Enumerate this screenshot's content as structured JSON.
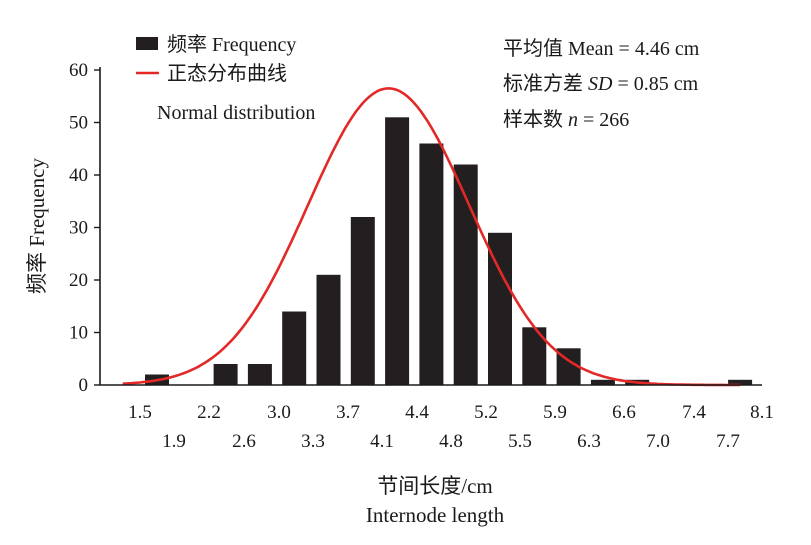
{
  "chart_data": {
    "type": "bar",
    "legend": {
      "placement": "top-left",
      "bar_label": "频率 Frequency",
      "curve_label": "正态分布曲线",
      "curve_label_en": "Normal distribution"
    },
    "stats": [
      {
        "prefix": "平均值 Mean = ",
        "italic": "",
        "suffix": "4.46 cm"
      },
      {
        "prefix": "标准方差 ",
        "italic": "SD",
        "suffix": " = 0.85 cm"
      },
      {
        "prefix": "样本数 ",
        "italic": "n",
        "suffix": " = 266"
      }
    ],
    "ylabel": "频率 Frequency",
    "xlabel_cn": "节间长度/cm",
    "xlabel_en": "Internode length",
    "ylim": [
      0,
      60
    ],
    "yticks": [
      0,
      10,
      20,
      30,
      40,
      50,
      60
    ],
    "x_tick_labels_row1": [
      "1.5",
      "2.2",
      "3.0",
      "3.7",
      "4.4",
      "5.2",
      "5.9",
      "6.6",
      "7.4",
      "8.1"
    ],
    "x_tick_labels_row2": [
      "1.9",
      "2.6",
      "3.3",
      "4.1",
      "4.8",
      "5.5",
      "6.3",
      "7.0",
      "7.7"
    ],
    "values": [
      2,
      0,
      4,
      4,
      14,
      21,
      32,
      51,
      46,
      42,
      29,
      11,
      7,
      1,
      1,
      0,
      0,
      1
    ],
    "series": [
      {
        "name": "频率 Frequency",
        "kind": "bars"
      },
      {
        "name": "正态分布曲线",
        "kind": "normal-curve",
        "color": "#e32828",
        "peak": 56.5
      }
    ],
    "bar_color": "#231f20",
    "grid": false
  }
}
